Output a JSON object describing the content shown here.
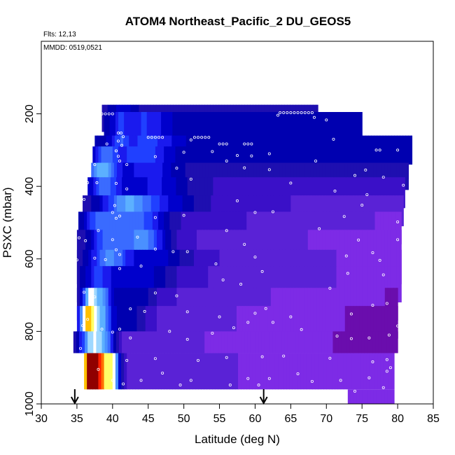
{
  "chart_data": {
    "type": "heatmap",
    "title": "ATOM4 Northeast_Pacific_2 DU_GEOS5",
    "annotations": {
      "flights": "Flts: 12,13",
      "dates": "MMDD: 0519,0521"
    },
    "xlabel": "Latitude (deg N)",
    "ylabel": "PSXC (mbar)",
    "xlim": [
      30,
      85
    ],
    "ylim": [
      1000,
      0
    ],
    "x_ticks": [
      "30",
      "35",
      "40",
      "45",
      "50",
      "55",
      "60",
      "65",
      "70",
      "75",
      "80",
      "85"
    ],
    "y_ticks": [
      "200",
      "400",
      "600",
      "800",
      "1000"
    ],
    "arrows_x": [
      34.7,
      61.2
    ],
    "palette": [
      "#6a0dad",
      "#7d2be6",
      "#5a22d6",
      "#3a10c8",
      "#1e0fb0",
      "#0000b0",
      "#0000cc",
      "#1a1aee",
      "#2040ff",
      "#3a6bff",
      "#4a90ff",
      "#5cb0ff",
      "#9ed8ff",
      "#ffffff",
      "#ffff66",
      "#ffc000",
      "#ff7000",
      "#ff2000",
      "#d00000",
      "#900000"
    ],
    "rows": [
      {
        "p_top": 175,
        "p_bot": 250,
        "lat_start": 38.5,
        "lat_end": 68.8,
        "base": 4.2,
        "grad": -0.1,
        "features": [
          [
            41.5,
            1.2,
            2.0
          ]
        ]
      },
      {
        "p_top": 195,
        "p_bot": 290,
        "lat_start": 38.8,
        "lat_end": 75.0,
        "base": 4.5,
        "grad": 0.2,
        "features": [
          [
            44.5,
            2.5,
            3.0
          ],
          [
            41.0,
            0.8,
            2.0
          ]
        ]
      },
      {
        "p_top": 260,
        "p_bot": 340,
        "lat_start": 37.5,
        "lat_end": 82.0,
        "base": 4.8,
        "grad": 0.1,
        "features": [
          [
            45.0,
            3.0,
            3.0
          ],
          [
            41.0,
            0.8,
            2.5
          ]
        ]
      },
      {
        "p_top": 290,
        "p_bot": 380,
        "lat_start": 37.2,
        "lat_end": 81.5,
        "base": 4.6,
        "grad": 0.1,
        "features": [
          [
            44.0,
            3.0,
            3.5
          ],
          [
            39.0,
            1.0,
            4.0
          ]
        ]
      },
      {
        "p_top": 335,
        "p_bot": 410,
        "lat_start": 37.0,
        "lat_end": 81.5,
        "base": 4.3,
        "grad": -0.5,
        "features": [
          [
            38.5,
            1.5,
            7.0
          ],
          [
            45.0,
            2.5,
            3.0
          ]
        ]
      },
      {
        "p_top": 375,
        "p_bot": 460,
        "lat_start": 36.5,
        "lat_end": 81.0,
        "base": 4.0,
        "grad": -1.5,
        "features": [
          [
            39.0,
            1.5,
            5.0
          ],
          [
            46.0,
            3.0,
            3.0
          ]
        ]
      },
      {
        "p_top": 425,
        "p_bot": 510,
        "lat_start": 35.8,
        "lat_end": 80.8,
        "base": 3.8,
        "grad": -2.0,
        "features": [
          [
            42.0,
            2.5,
            6.0
          ],
          [
            47.0,
            3.5,
            3.0
          ]
        ]
      },
      {
        "p_top": 470,
        "p_bot": 560,
        "lat_start": 35.2,
        "lat_end": 80.5,
        "base": 3.8,
        "grad": -2.5,
        "features": [
          [
            43.0,
            3.0,
            6.0
          ],
          [
            38.0,
            1.5,
            4.0
          ]
        ]
      },
      {
        "p_top": 520,
        "p_bot": 620,
        "lat_start": 35.0,
        "lat_end": 80.5,
        "base": 3.5,
        "grad": -2.8,
        "features": [
          [
            44.0,
            2.5,
            7.0
          ],
          [
            39.0,
            1.5,
            5.0
          ]
        ]
      },
      {
        "p_top": 575,
        "p_bot": 670,
        "lat_start": 35.0,
        "lat_end": 80.5,
        "base": 3.5,
        "grad": -2.5,
        "features": [
          [
            39.5,
            2.0,
            6.0
          ],
          [
            46.0,
            3.5,
            3.0
          ]
        ]
      },
      {
        "p_top": 620,
        "p_bot": 720,
        "lat_start": 35.0,
        "lat_end": 80.5,
        "base": 3.5,
        "grad": -2.5,
        "features": [
          [
            38.0,
            1.5,
            4.0
          ],
          [
            44.0,
            3.0,
            3.0
          ]
        ]
      },
      {
        "p_top": 680,
        "p_bot": 770,
        "lat_start": 35.0,
        "lat_end": 80.0,
        "base": 3.2,
        "grad": -2.8,
        "features": [
          [
            36.8,
            0.8,
            8.0
          ],
          [
            38.5,
            1.0,
            6.0
          ],
          [
            43.0,
            2.5,
            2.5
          ]
        ]
      },
      {
        "p_top": 730,
        "p_bot": 820,
        "lat_start": 35.0,
        "lat_end": 80.0,
        "base": 3.0,
        "grad": -3.0,
        "features": [
          [
            36.5,
            0.9,
            11.0
          ],
          [
            38.5,
            1.0,
            7.0
          ],
          [
            42.0,
            2.0,
            2.5
          ]
        ]
      },
      {
        "p_top": 800,
        "p_bot": 860,
        "lat_start": 34.5,
        "lat_end": 80.0,
        "base": 2.5,
        "grad": -2.5,
        "features": [
          [
            37.0,
            1.2,
            9.0
          ],
          [
            39.0,
            1.0,
            6.0
          ]
        ]
      },
      {
        "p_top": 860,
        "p_bot": 960,
        "lat_start": 36.0,
        "lat_end": 79.5,
        "base": 2.5,
        "grad": -2.0,
        "features": [
          [
            36.8,
            0.8,
            15.5
          ],
          [
            38.5,
            1.0,
            12.0
          ],
          [
            40.2,
            0.6,
            8.0
          ]
        ]
      },
      {
        "p_top": 960,
        "p_bot": 1000,
        "lat_start": 73.0,
        "lat_end": 79.5,
        "base": 1.5,
        "grad": -0.5,
        "features": []
      }
    ],
    "points": [
      [
        38.5,
        200
      ],
      [
        39.0,
        200
      ],
      [
        39.5,
        200
      ],
      [
        40.0,
        200
      ],
      [
        63.5,
        197
      ],
      [
        64.0,
        197
      ],
      [
        64.5,
        197
      ],
      [
        65.0,
        197
      ],
      [
        65.5,
        197
      ],
      [
        66.0,
        197
      ],
      [
        66.5,
        197
      ],
      [
        67.0,
        197
      ],
      [
        67.5,
        197
      ],
      [
        68.0,
        197
      ],
      [
        63.2,
        204
      ],
      [
        68.3,
        210
      ],
      [
        70.0,
        217
      ],
      [
        40.8,
        253
      ],
      [
        41.2,
        253
      ],
      [
        41.5,
        263
      ],
      [
        45.0,
        265
      ],
      [
        45.5,
        265
      ],
      [
        46.0,
        265
      ],
      [
        46.5,
        265
      ],
      [
        47.0,
        265
      ],
      [
        51.5,
        265
      ],
      [
        52.0,
        265
      ],
      [
        52.5,
        265
      ],
      [
        53.0,
        265
      ],
      [
        53.5,
        265
      ],
      [
        58.5,
        283
      ],
      [
        59.0,
        283
      ],
      [
        59.5,
        283
      ],
      [
        55.0,
        283
      ],
      [
        55.5,
        283
      ],
      [
        56.0,
        283
      ],
      [
        40.8,
        275
      ],
      [
        41.3,
        287
      ],
      [
        37.0,
        268
      ],
      [
        39.2,
        283
      ],
      [
        51.0,
        272
      ],
      [
        40.5,
        302
      ],
      [
        40.8,
        317
      ],
      [
        41.0,
        330
      ],
      [
        42.0,
        340
      ],
      [
        46.0,
        318
      ],
      [
        50.0,
        306
      ],
      [
        54.0,
        304
      ],
      [
        56.0,
        330
      ],
      [
        57.5,
        315
      ],
      [
        59.5,
        316
      ],
      [
        62.0,
        310
      ],
      [
        71.0,
        270
      ],
      [
        77.0,
        300
      ],
      [
        77.5,
        300
      ],
      [
        80.0,
        300
      ],
      [
        75.5,
        355
      ],
      [
        68.5,
        330
      ],
      [
        37.5,
        340
      ],
      [
        40.5,
        302
      ],
      [
        36.5,
        390
      ],
      [
        37.8,
        390
      ],
      [
        40.5,
        392
      ],
      [
        42.0,
        407
      ],
      [
        49.0,
        350
      ],
      [
        51.0,
        380
      ],
      [
        58.5,
        349
      ],
      [
        62.0,
        354
      ],
      [
        71.2,
        413
      ],
      [
        74.0,
        370
      ],
      [
        78.0,
        375
      ],
      [
        80.8,
        397
      ],
      [
        75.7,
        423
      ],
      [
        65.0,
        391
      ],
      [
        40.0,
        472
      ],
      [
        40.5,
        488
      ],
      [
        41.0,
        482
      ],
      [
        36.0,
        436
      ],
      [
        40.3,
        453
      ],
      [
        46.0,
        486
      ],
      [
        50.0,
        480
      ],
      [
        57.5,
        440
      ],
      [
        60.0,
        472
      ],
      [
        62.5,
        470
      ],
      [
        72.5,
        483
      ],
      [
        75.0,
        452
      ],
      [
        80.0,
        498
      ],
      [
        35.3,
        542
      ],
      [
        36.2,
        550
      ],
      [
        38.0,
        522
      ],
      [
        40.0,
        547
      ],
      [
        40.5,
        575
      ],
      [
        41.0,
        588
      ],
      [
        43.5,
        540
      ],
      [
        46.0,
        573
      ],
      [
        48.5,
        580
      ],
      [
        50.5,
        580
      ],
      [
        56.0,
        522
      ],
      [
        58.5,
        560
      ],
      [
        60.0,
        595
      ],
      [
        69.0,
        517
      ],
      [
        72.8,
        592
      ],
      [
        74.5,
        548
      ],
      [
        77.5,
        604
      ],
      [
        80.0,
        547
      ],
      [
        76.5,
        583
      ],
      [
        35.0,
        603
      ],
      [
        37.5,
        598
      ],
      [
        39.0,
        602
      ],
      [
        41.0,
        627
      ],
      [
        44.0,
        620
      ],
      [
        54.5,
        614
      ],
      [
        55.5,
        658
      ],
      [
        58.0,
        670
      ],
      [
        61.0,
        635
      ],
      [
        73.0,
        640
      ],
      [
        78.0,
        644
      ],
      [
        36.0,
        692
      ],
      [
        37.5,
        705
      ],
      [
        42.5,
        738
      ],
      [
        44.5,
        745
      ],
      [
        46.0,
        694
      ],
      [
        49.0,
        702
      ],
      [
        50.5,
        746
      ],
      [
        55.0,
        760
      ],
      [
        60.0,
        750
      ],
      [
        61.5,
        737
      ],
      [
        65.0,
        760
      ],
      [
        70.5,
        681
      ],
      [
        73.5,
        752
      ],
      [
        76.5,
        728
      ],
      [
        78.5,
        723
      ],
      [
        80.0,
        785
      ],
      [
        35.8,
        784
      ],
      [
        36.5,
        767
      ],
      [
        38.5,
        794
      ],
      [
        40.0,
        802
      ],
      [
        41.0,
        794
      ],
      [
        42.5,
        818
      ],
      [
        48.0,
        800
      ],
      [
        50.5,
        822
      ],
      [
        54.0,
        805
      ],
      [
        57.0,
        790
      ],
      [
        59.0,
        775
      ],
      [
        62.5,
        775
      ],
      [
        66.5,
        795
      ],
      [
        71.5,
        813
      ],
      [
        73.5,
        820
      ],
      [
        76.0,
        818
      ],
      [
        78.8,
        810
      ],
      [
        35.5,
        847
      ],
      [
        38.0,
        905
      ],
      [
        40.0,
        935
      ],
      [
        41.5,
        945
      ],
      [
        44.0,
        935
      ],
      [
        47.0,
        915
      ],
      [
        49.5,
        948
      ],
      [
        51.0,
        935
      ],
      [
        56.5,
        948
      ],
      [
        59.0,
        930
      ],
      [
        60.5,
        948
      ],
      [
        62.0,
        930
      ],
      [
        66.0,
        917
      ],
      [
        68.0,
        938
      ],
      [
        72.0,
        935
      ],
      [
        76.0,
        928
      ],
      [
        78.5,
        910
      ],
      [
        79.0,
        900
      ],
      [
        42.0,
        880
      ],
      [
        46.0,
        875
      ],
      [
        52.0,
        880
      ],
      [
        56.0,
        872
      ],
      [
        61.0,
        870
      ],
      [
        64.0,
        868
      ],
      [
        70.5,
        874
      ],
      [
        76.5,
        884
      ],
      [
        78.5,
        878
      ],
      [
        74.0,
        965
      ],
      [
        78.0,
        955
      ]
    ]
  }
}
